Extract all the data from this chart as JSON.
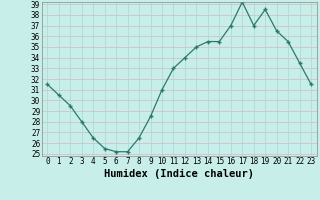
{
  "title": "",
  "xlabel": "Humidex (Indice chaleur)",
  "x": [
    0,
    1,
    2,
    3,
    4,
    5,
    6,
    7,
    8,
    9,
    10,
    11,
    12,
    13,
    14,
    15,
    16,
    17,
    18,
    19,
    20,
    21,
    22,
    23
  ],
  "y": [
    31.5,
    30.5,
    29.5,
    28.0,
    26.5,
    25.5,
    25.2,
    25.2,
    26.5,
    28.5,
    31.0,
    33.0,
    34.0,
    35.0,
    35.5,
    35.5,
    37.0,
    39.2,
    37.0,
    38.5,
    36.5,
    35.5,
    33.5,
    31.5
  ],
  "ylim": [
    25,
    39
  ],
  "xlim": [
    -0.5,
    23.5
  ],
  "yticks": [
    25,
    26,
    27,
    28,
    29,
    30,
    31,
    32,
    33,
    34,
    35,
    36,
    37,
    38,
    39
  ],
  "xticks": [
    0,
    1,
    2,
    3,
    4,
    5,
    6,
    7,
    8,
    9,
    10,
    11,
    12,
    13,
    14,
    15,
    16,
    17,
    18,
    19,
    20,
    21,
    22,
    23
  ],
  "line_color": "#2d7a6a",
  "marker": "+",
  "bg_color": "#c8eeea",
  "grid_h_color": "#d4b8c0",
  "grid_v_color": "#a8d8d4",
  "fig_bg": "#c8eeea",
  "xlabel_fontsize": 7.5,
  "tick_fontsize": 5.5,
  "tick_font": "monospace"
}
